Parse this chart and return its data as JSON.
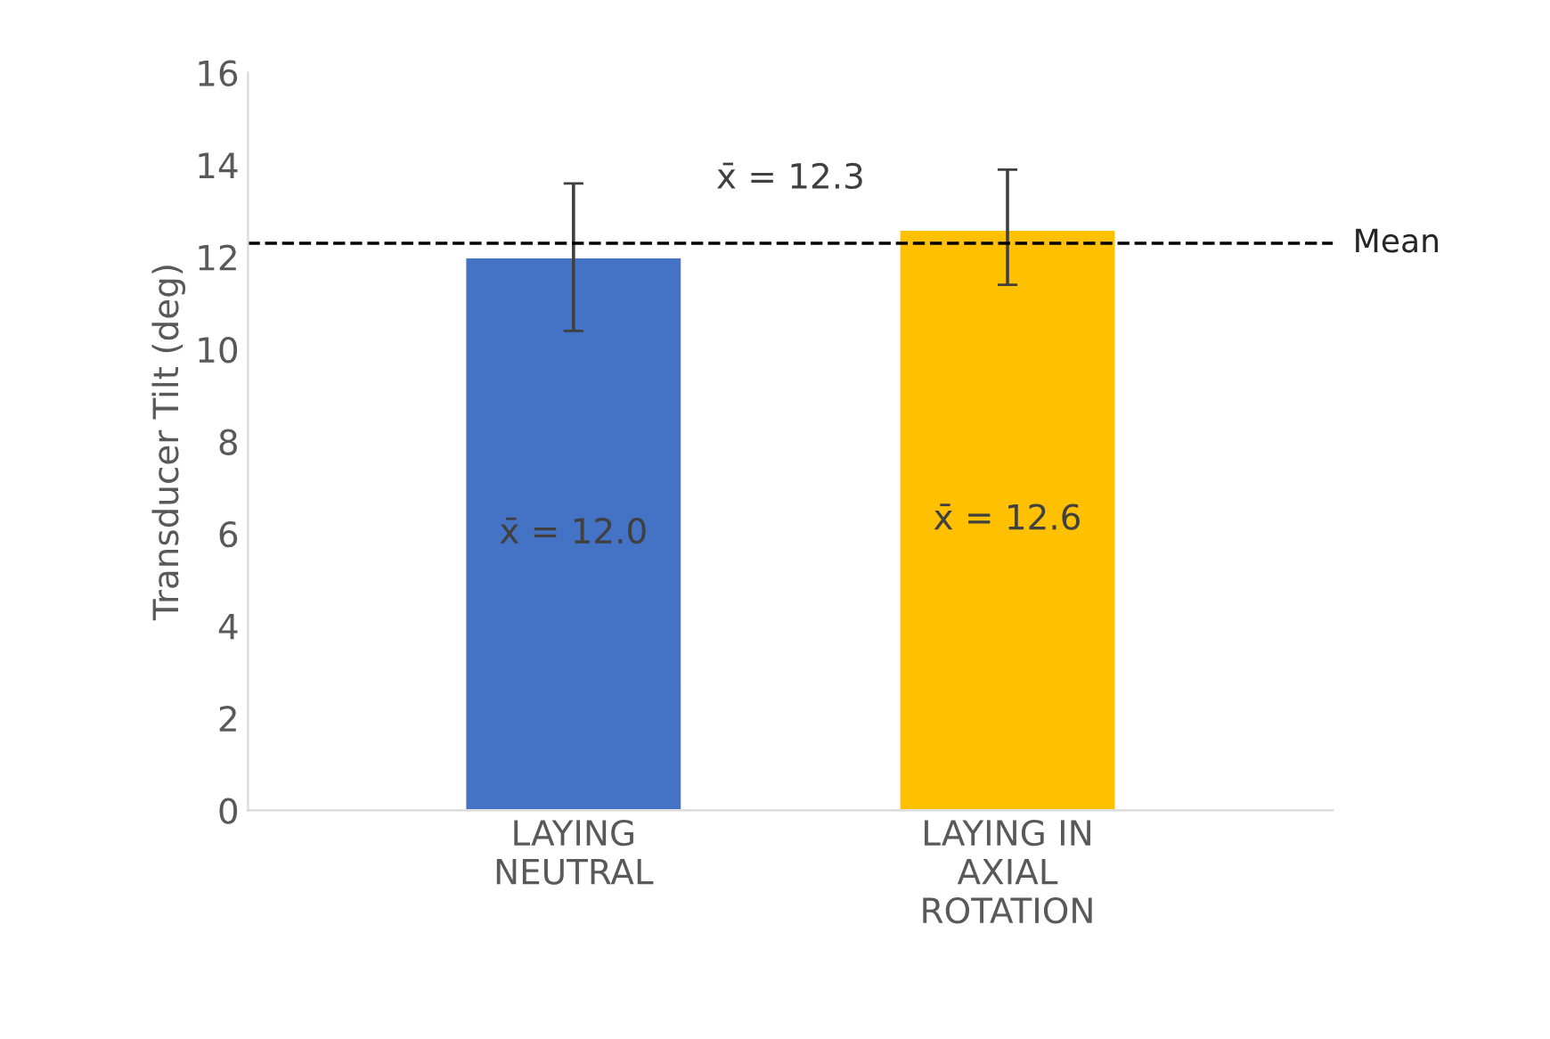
{
  "chart_data": {
    "type": "bar",
    "ylabel": "Transducer Tilt (deg)",
    "categories": [
      "LAYING\nNEUTRAL",
      "LAYING IN\nAXIAL\nROTATION"
    ],
    "values": [
      12.0,
      12.6
    ],
    "colors": [
      "#4472c4",
      "#ffc000"
    ],
    "errors": [
      [
        10.4,
        13.6
      ],
      [
        11.4,
        13.9
      ]
    ],
    "value_labels": [
      "x̄ = 12.0",
      "x̄ = 12.6"
    ],
    "ylim": [
      0,
      16
    ],
    "yticks": [
      0,
      2,
      4,
      6,
      8,
      10,
      12,
      14,
      16
    ],
    "ref_lines": [
      {
        "axis": "y",
        "value": 12.3,
        "label": "Mean",
        "color": "#000000",
        "line_style": "dashed"
      }
    ],
    "annotations": [
      {
        "text": "x̄ = 12.3",
        "y": 12.3
      }
    ],
    "grid": false,
    "legend": false
  }
}
